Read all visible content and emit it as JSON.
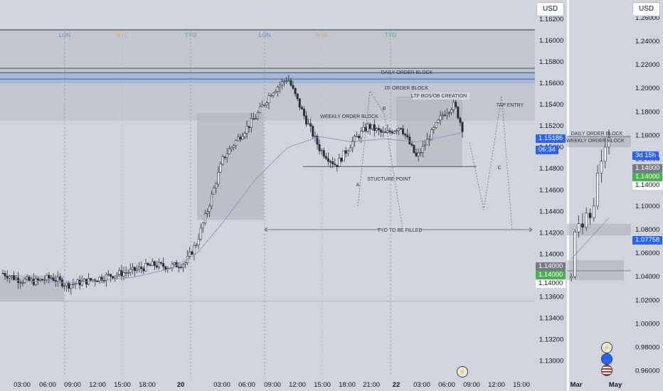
{
  "currency": "USD",
  "colors": {
    "bg": "#d0d4dc",
    "candle": "#2a2e39",
    "ma": "#8b93c9",
    "session_lon": "#6e8fd6",
    "session_nyc": "#e8a46a",
    "session_tyo": "#5bb069",
    "price_blue": "#2962ff",
    "price_green": "#4caf50",
    "price_gray": "#787b86"
  },
  "icons": [
    "lightning-icon",
    "blue-dot-icon",
    "us-flag-icon"
  ],
  "chart_data": [
    {
      "type": "candlestick",
      "title": "",
      "ylim": [
        1.1285,
        1.1638
      ],
      "y_ticks": [
        "1.16200",
        "1.16000",
        "1.15800",
        "1.15600",
        "1.15400",
        "1.15200",
        "1.15000",
        "1.14800",
        "1.14600",
        "1.14400",
        "1.14200",
        "1.14000",
        "1.13800",
        "1.13600",
        "1.13400",
        "1.13200",
        "1.13000"
      ],
      "x_ticks": [
        "03:00",
        "06:00",
        "09:00",
        "12:00",
        "15:00",
        "18:00",
        "20",
        "03:00",
        "06:00",
        "09:00",
        "12:00",
        "15:00",
        "18:00",
        "21:00",
        "22",
        "03:00",
        "06:00",
        "09:00",
        "12:00",
        "15:00"
      ],
      "sessions": [
        "LON",
        "NYC",
        "TYO",
        "LON",
        "NYC",
        "TYO"
      ],
      "price_labels": {
        "last": "1.15186",
        "countdown": "06:34",
        "level_gray": "1.14000",
        "level_green": "1.14000",
        "level_white": "1.14000"
      },
      "annotations": [
        "DAILY ORDER BLOCK",
        "15' ORDER BLOCK",
        "LTF BOS/OB CREATION",
        "TAP ENTRY",
        "WEEKLY ORDER BLOCK",
        "B",
        "A",
        "C",
        "STUCTURE POINT",
        "TYO TO BE FILLED"
      ],
      "close_path": [
        [
          0,
          1.1382
        ],
        [
          0.03,
          1.1376
        ],
        [
          0.06,
          1.1374
        ],
        [
          0.09,
          1.1378
        ],
        [
          0.12,
          1.1371
        ],
        [
          0.16,
          1.1375
        ],
        [
          0.2,
          1.138
        ],
        [
          0.24,
          1.1384
        ],
        [
          0.28,
          1.139
        ],
        [
          0.31,
          1.1388
        ],
        [
          0.34,
          1.1392
        ],
        [
          0.36,
          1.141
        ],
        [
          0.38,
          1.144
        ],
        [
          0.41,
          1.149
        ],
        [
          0.44,
          1.151
        ],
        [
          0.47,
          1.1528
        ],
        [
          0.5,
          1.1552
        ],
        [
          0.53,
          1.1565
        ],
        [
          0.56,
          1.153
        ],
        [
          0.59,
          1.1498
        ],
        [
          0.62,
          1.1483
        ],
        [
          0.65,
          1.1505
        ],
        [
          0.68,
          1.152
        ],
        [
          0.71,
          1.1512
        ],
        [
          0.74,
          1.152
        ],
        [
          0.77,
          1.149
        ],
        [
          0.8,
          1.1515
        ],
        [
          0.82,
          1.1532
        ],
        [
          0.84,
          1.154
        ],
        [
          0.855,
          1.1518
        ]
      ],
      "ma_path": [
        [
          0,
          1.1376
        ],
        [
          0.12,
          1.1373
        ],
        [
          0.24,
          1.1378
        ],
        [
          0.31,
          1.1386
        ],
        [
          0.36,
          1.14
        ],
        [
          0.41,
          1.143
        ],
        [
          0.47,
          1.147
        ],
        [
          0.53,
          1.15
        ],
        [
          0.59,
          1.151
        ],
        [
          0.65,
          1.1505
        ],
        [
          0.71,
          1.1508
        ],
        [
          0.77,
          1.1505
        ],
        [
          0.84,
          1.1512
        ],
        [
          0.855,
          1.1514
        ]
      ]
    },
    {
      "type": "candlestick",
      "title": "",
      "ylim": [
        0.955,
        1.275
      ],
      "y_ticks": [
        "1.26000",
        "1.24000",
        "1.22000",
        "1.20000",
        "1.18000",
        "1.16000",
        "1.14000",
        "1.12000",
        "1.10000",
        "1.08000",
        "1.06000",
        "1.04000",
        "1.02000",
        "1.00000",
        "0.98000",
        "0.96000"
      ],
      "x_ticks": [
        "Mar",
        "May"
      ],
      "price_labels": {
        "countdown": "3d 15h",
        "level_gray": "1.14000",
        "level_green": "1.14000",
        "level_white": "1.14000",
        "level_blue": "1.07758"
      },
      "annotations": [
        "DAILY ORDER BLOCK",
        "WEEKLY ORDER BLOCK"
      ],
      "weekly": [
        [
          1.039,
          1.04,
          1.036,
          1.043
        ],
        [
          1.04,
          1.078,
          1.038,
          1.08
        ],
        [
          1.078,
          1.085,
          1.073,
          1.092
        ],
        [
          1.085,
          1.082,
          1.076,
          1.094
        ],
        [
          1.082,
          1.094,
          1.079,
          1.099
        ],
        [
          1.094,
          1.09,
          1.084,
          1.098
        ],
        [
          1.09,
          1.1,
          1.087,
          1.107
        ],
        [
          1.1,
          1.128,
          1.097,
          1.135
        ],
        [
          1.128,
          1.138,
          1.12,
          1.148
        ],
        [
          1.138,
          1.15,
          1.132,
          1.158
        ],
        [
          1.15,
          1.158,
          1.144,
          1.165
        ]
      ]
    }
  ]
}
